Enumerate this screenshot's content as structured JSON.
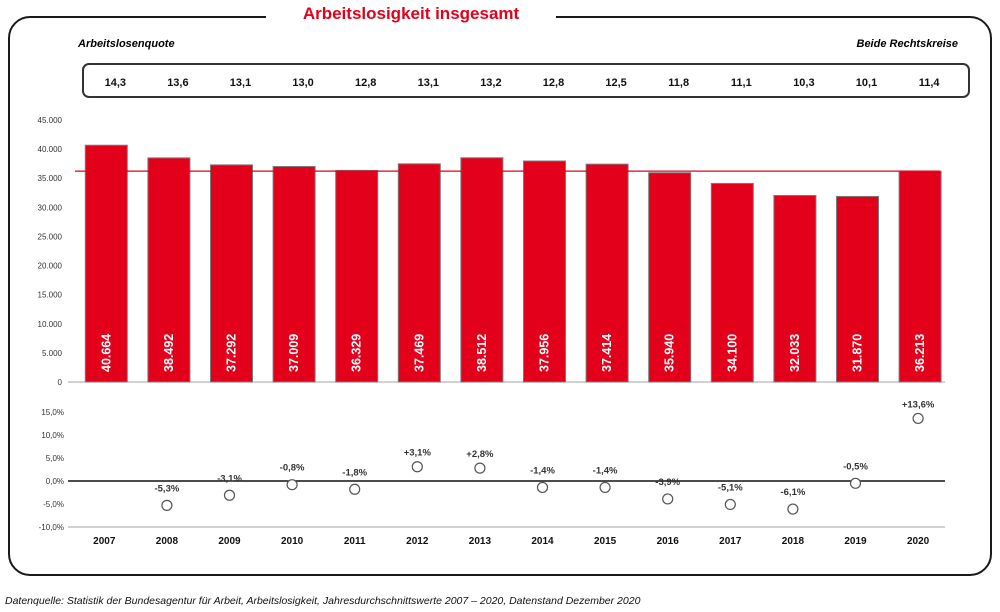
{
  "header": {
    "title": "Arbeitslosigkeit insgesamt",
    "left_label": "Arbeitslosenquote",
    "right_label": "Beide Rechtskreise"
  },
  "footer": {
    "source": "Datenquelle: Statistik der Bundesagentur für Arbeit, Arbeitslosigkeit, Jahresdurchschnittswerte 2007 – 2020, Datenstand Dezember 2020"
  },
  "colors": {
    "bar": "#e3001b",
    "reference_line": "#e3001b",
    "bar_outline": "#7a7a7a"
  },
  "chart_data": [
    {
      "type": "bar",
      "title": "Arbeitslosigkeit insgesamt",
      "categories": [
        "2007",
        "2008",
        "2009",
        "2010",
        "2011",
        "2012",
        "2013",
        "2014",
        "2015",
        "2016",
        "2017",
        "2018",
        "2019",
        "2020"
      ],
      "values": [
        40664,
        38492,
        37292,
        37009,
        36329,
        37469,
        38512,
        37956,
        37414,
        35940,
        34100,
        32033,
        31870,
        36213
      ],
      "value_labels": [
        "40.664",
        "38.492",
        "37.292",
        "37.009",
        "36.329",
        "37.469",
        "38.512",
        "37.956",
        "37.414",
        "35.940",
        "34.100",
        "32.033",
        "31.870",
        "36.213"
      ],
      "reference_line_value": 36213,
      "ylim": [
        0,
        45000
      ],
      "yticks": [
        0,
        5000,
        10000,
        15000,
        20000,
        25000,
        30000,
        35000,
        40000,
        45000
      ],
      "ytick_labels": [
        "0",
        "5.000",
        "10.000",
        "15.000",
        "20.000",
        "25.000",
        "30.000",
        "35.000",
        "40.000",
        "45.000"
      ],
      "grid": false
    },
    {
      "type": "table",
      "title": "Arbeitslosenquote",
      "categories": [
        "2007",
        "2008",
        "2009",
        "2010",
        "2011",
        "2012",
        "2013",
        "2014",
        "2015",
        "2016",
        "2017",
        "2018",
        "2019",
        "2020"
      ],
      "values": [
        "14,3",
        "13,6",
        "13,1",
        "13,0",
        "12,8",
        "13,1",
        "13,2",
        "12,8",
        "12,5",
        "11,8",
        "11,1",
        "10,3",
        "10,1",
        "11,4"
      ]
    },
    {
      "type": "scatter",
      "categories": [
        "2007",
        "2008",
        "2009",
        "2010",
        "2011",
        "2012",
        "2013",
        "2014",
        "2015",
        "2016",
        "2017",
        "2018",
        "2019",
        "2020"
      ],
      "values": [
        null,
        -5.3,
        -3.1,
        -0.8,
        -1.8,
        3.1,
        2.8,
        -1.4,
        -1.4,
        -3.9,
        -5.1,
        -6.1,
        -0.5,
        13.6
      ],
      "value_labels": [
        "",
        "-5,3%",
        "-3,1%",
        "-0,8%",
        "-1,8%",
        "+3,1%",
        "+2,8%",
        "-1,4%",
        "-1,4%",
        "-3,9%",
        "-5,1%",
        "-6,1%",
        "-0,5%",
        "+13,6%"
      ],
      "ylim": [
        -10,
        15
      ],
      "yticks": [
        -10,
        -5,
        0,
        5,
        10,
        15
      ],
      "ytick_labels": [
        "-10,0%",
        "-5,0%",
        "0,0%",
        "5,0%",
        "10,0%",
        "15,0%"
      ],
      "grid": false
    }
  ]
}
